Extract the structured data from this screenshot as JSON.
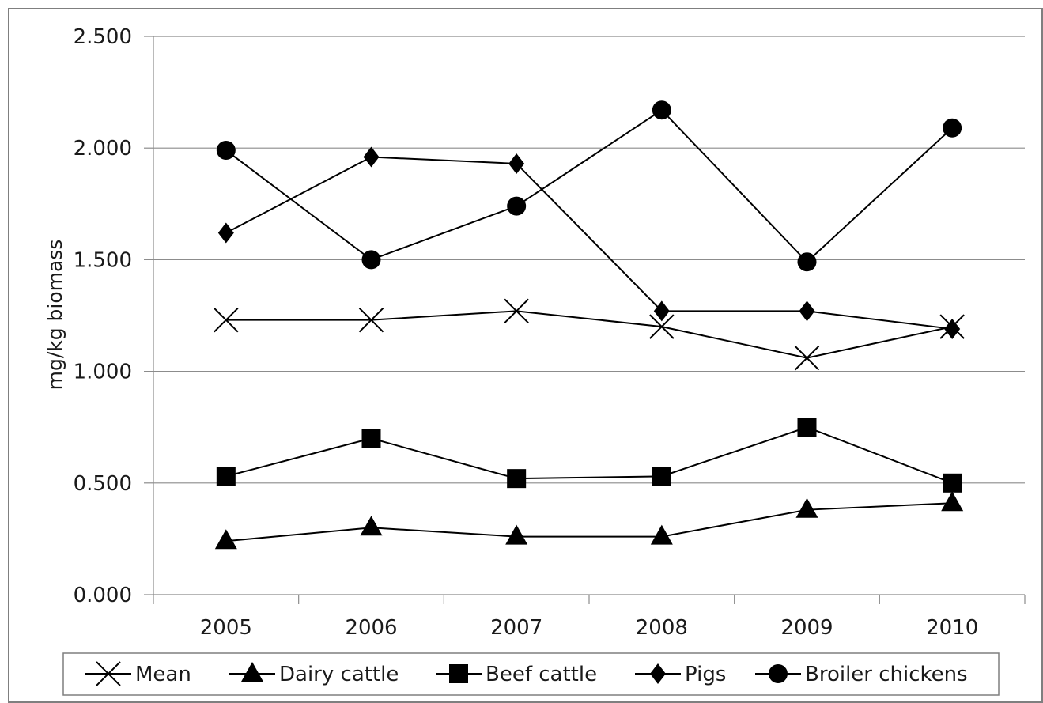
{
  "chart_data": {
    "type": "line",
    "ylabel": "mg/kg biomass",
    "xlabel": "",
    "categories": [
      "2005",
      "2006",
      "2007",
      "2008",
      "2009",
      "2010"
    ],
    "ylim": [
      0,
      2.5
    ],
    "yticks": [
      0,
      0.5,
      1.0,
      1.5,
      2.0,
      2.5
    ],
    "ytick_labels": [
      "0.000",
      "0.500",
      "1.000",
      "1.500",
      "2.000",
      "2.500"
    ],
    "grid": "horizontal",
    "legend_position": "bottom",
    "series": [
      {
        "name": "Mean",
        "marker": "x",
        "values": [
          1.23,
          1.23,
          1.27,
          1.2,
          1.06,
          1.2
        ]
      },
      {
        "name": "Dairy cattle",
        "marker": "triangle",
        "values": [
          0.24,
          0.3,
          0.26,
          0.26,
          0.38,
          0.41
        ]
      },
      {
        "name": "Beef cattle",
        "marker": "square",
        "values": [
          0.53,
          0.7,
          0.52,
          0.53,
          0.75,
          0.5
        ]
      },
      {
        "name": "Pigs",
        "marker": "diamond",
        "values": [
          1.62,
          1.96,
          1.93,
          1.27,
          1.27,
          1.19
        ]
      },
      {
        "name": "Broiler chickens",
        "marker": "circle",
        "values": [
          1.99,
          1.5,
          1.74,
          2.17,
          1.49,
          2.09
        ]
      }
    ],
    "colors": {
      "line": "#000000",
      "grid": "#8c8c8c",
      "border": "#7f7f7f"
    }
  }
}
